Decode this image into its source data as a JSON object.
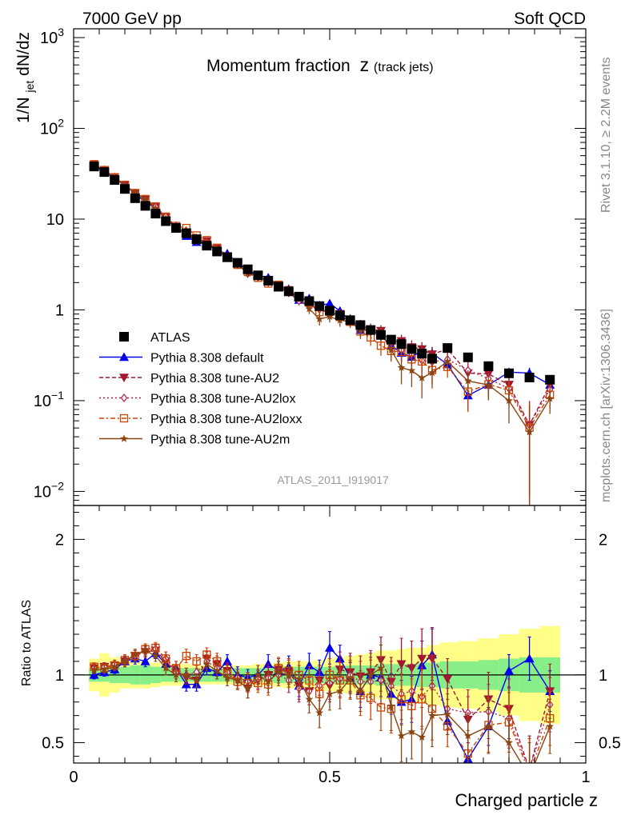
{
  "header": {
    "left": "7000 GeV pp",
    "right": "Soft QCD"
  },
  "side_labels": {
    "rivet": "Rivet 3.1.10, ≥ 2.2M events",
    "mcplots": "mcplots.cern.ch [arXiv:1306.3436]"
  },
  "chart_data": {
    "type": "line",
    "title": "Momentum fraction",
    "title_var": "z",
    "title_sub": "(track jets)",
    "analysis_label": "ATLAS_2011_I919017",
    "xlabel": "Charged particle z",
    "ylabel_main": "1/N",
    "ylabel_sub": "jet",
    "ylabel_tail": " dN/dz",
    "ratio_ylabel": "Ratio to ATLAS",
    "xlim": [
      0,
      1
    ],
    "ylim_main": [
      0.007,
      1250
    ],
    "ylim_ratio": [
      0.35,
      2.25
    ],
    "yscale_main": "log",
    "x_ticks": [
      "0",
      "0.5",
      "1"
    ],
    "ratio_ticks": [
      "0.5",
      "1",
      "2"
    ],
    "main_ticks": [
      {
        "value": 0.01,
        "base": "10",
        "exp": "−2"
      },
      {
        "value": 0.1,
        "base": "10",
        "exp": "−1"
      },
      {
        "value": 1,
        "base": "1",
        "exp": ""
      },
      {
        "value": 10,
        "base": "10",
        "exp": ""
      },
      {
        "value": 100,
        "base": "10",
        "exp": "2"
      },
      {
        "value": 1000,
        "base": "10",
        "exp": "3"
      }
    ],
    "legend_placement": "lower-left",
    "x": [
      0.04,
      0.06,
      0.08,
      0.1,
      0.12,
      0.14,
      0.16,
      0.18,
      0.2,
      0.22,
      0.24,
      0.26,
      0.28,
      0.3,
      0.32,
      0.34,
      0.36,
      0.38,
      0.4,
      0.42,
      0.44,
      0.46,
      0.48,
      0.5,
      0.52,
      0.54,
      0.56,
      0.58,
      0.6,
      0.62,
      0.64,
      0.66,
      0.68,
      0.7,
      0.73,
      0.77,
      0.81,
      0.85,
      0.89,
      0.93
    ],
    "reference": {
      "name": "ATLAS",
      "values": [
        38,
        33,
        27,
        21.5,
        17,
        14,
        11.5,
        9.5,
        8,
        7,
        6,
        5.1,
        4.4,
        3.8,
        3.3,
        2.8,
        2.4,
        2.1,
        1.8,
        1.6,
        1.4,
        1.25,
        1.1,
        0.98,
        0.87,
        0.77,
        0.68,
        0.6,
        0.53,
        0.47,
        0.42,
        0.37,
        0.33,
        0.29,
        0.38,
        0.3,
        0.24,
        0.2,
        0.18,
        0.17
      ],
      "band_inner": [
        0.05,
        0.05,
        0.06,
        0.06,
        0.07,
        0.07,
        0.06,
        0.05,
        0.05,
        0.05,
        0.05,
        0.05,
        0.05,
        0.05,
        0.05,
        0.05,
        0.05,
        0.05,
        0.06,
        0.06,
        0.06,
        0.06,
        0.06,
        0.06,
        0.07,
        0.07,
        0.07,
        0.07,
        0.08,
        0.08,
        0.08,
        0.08,
        0.09,
        0.09,
        0.1,
        0.1,
        0.11,
        0.12,
        0.13,
        0.13
      ],
      "band_outer": [
        0.12,
        0.16,
        0.13,
        0.1,
        0.1,
        0.1,
        0.09,
        0.08,
        0.08,
        0.08,
        0.07,
        0.07,
        0.07,
        0.07,
        0.07,
        0.07,
        0.08,
        0.08,
        0.09,
        0.1,
        0.1,
        0.1,
        0.11,
        0.12,
        0.13,
        0.14,
        0.15,
        0.16,
        0.18,
        0.18,
        0.19,
        0.2,
        0.2,
        0.22,
        0.24,
        0.25,
        0.27,
        0.3,
        0.34,
        0.36
      ]
    },
    "series": [
      {
        "name": "Pythia 8.308 default",
        "color": "#0000ee",
        "dash": "",
        "marker": "triangle-up",
        "ratio": [
          1.0,
          1.02,
          1.04,
          1.1,
          1.12,
          1.1,
          1.16,
          1.08,
          1.05,
          0.93,
          0.93,
          1.05,
          1.02,
          1.1,
          1.0,
          0.98,
          1.0,
          1.08,
          1.03,
          1.06,
          0.92,
          1.07,
          1.02,
          1.2,
          1.12,
          0.98,
          0.88,
          1.0,
          0.98,
          0.86,
          0.8,
          0.82,
          1.07,
          1.15,
          0.66,
          0.38,
          0.62,
          1.03,
          1.12,
          0.88
        ],
        "err": [
          0.03,
          0.03,
          0.03,
          0.03,
          0.04,
          0.04,
          0.04,
          0.04,
          0.05,
          0.05,
          0.05,
          0.05,
          0.05,
          0.05,
          0.06,
          0.06,
          0.07,
          0.07,
          0.07,
          0.08,
          0.08,
          0.09,
          0.09,
          0.12,
          0.1,
          0.11,
          0.12,
          0.13,
          0.14,
          0.15,
          0.16,
          0.17,
          0.18,
          0.19,
          0.1,
          0.12,
          0.14,
          0.12,
          0.16,
          0.15
        ]
      },
      {
        "name": "Pythia 8.308 tune-AU2",
        "color": "#a01830",
        "dash": "5,3",
        "marker": "triangle-down",
        "ratio": [
          1.05,
          1.06,
          1.07,
          1.1,
          1.14,
          1.17,
          1.18,
          1.1,
          1.02,
          0.98,
          0.96,
          1.12,
          1.08,
          1.03,
          0.96,
          0.9,
          0.96,
          1.0,
          1.04,
          1.02,
          0.92,
          0.88,
          0.96,
          0.92,
          1.04,
          1.02,
          0.99,
          1.02,
          1.11,
          0.95,
          1.08,
          1.05,
          1.12,
          1.12,
          0.97,
          0.67,
          0.82,
          0.75,
          0.3,
          0.88
        ],
        "err": [
          0.03,
          0.03,
          0.03,
          0.04,
          0.04,
          0.04,
          0.04,
          0.05,
          0.05,
          0.05,
          0.05,
          0.05,
          0.06,
          0.06,
          0.06,
          0.07,
          0.07,
          0.08,
          0.08,
          0.09,
          0.1,
          0.1,
          0.11,
          0.12,
          0.13,
          0.14,
          0.15,
          0.16,
          0.17,
          0.18,
          0.19,
          0.2,
          0.22,
          0.23,
          0.15,
          0.17,
          0.2,
          0.22,
          0.25,
          0.2
        ]
      },
      {
        "name": "Pythia 8.308 tune-AU2lox",
        "color": "#b02050",
        "dash": "2,3",
        "marker": "diamond",
        "ratio": [
          1.05,
          1.06,
          1.08,
          1.1,
          1.14,
          1.18,
          1.19,
          1.12,
          1.02,
          1.0,
          1.02,
          1.1,
          1.05,
          1.02,
          0.98,
          0.95,
          0.97,
          0.98,
          1.0,
          0.96,
          0.9,
          0.88,
          0.92,
          0.94,
          0.97,
          1.0,
          0.95,
          0.95,
          0.96,
          0.92,
          0.86,
          0.88,
          0.84,
          0.92,
          0.75,
          0.72,
          0.73,
          0.68,
          0.3,
          0.78
        ],
        "err": [
          0.03,
          0.03,
          0.03,
          0.04,
          0.04,
          0.04,
          0.04,
          0.05,
          0.05,
          0.05,
          0.05,
          0.05,
          0.06,
          0.06,
          0.06,
          0.07,
          0.07,
          0.08,
          0.08,
          0.09,
          0.1,
          0.1,
          0.11,
          0.12,
          0.13,
          0.14,
          0.15,
          0.16,
          0.17,
          0.18,
          0.19,
          0.2,
          0.22,
          0.23,
          0.15,
          0.17,
          0.2,
          0.22,
          0.25,
          0.2
        ]
      },
      {
        "name": "Pythia 8.308 tune-AU2loxx",
        "color": "#cc4400",
        "dash": "6,3,2,3",
        "marker": "square-open",
        "ratio": [
          1.06,
          1.05,
          1.07,
          1.11,
          1.14,
          1.19,
          1.2,
          1.12,
          1.05,
          1.14,
          1.1,
          1.15,
          1.1,
          1.01,
          0.95,
          0.94,
          0.94,
          0.93,
          1.05,
          1.03,
          1.0,
          0.96,
          0.86,
          1.0,
          0.96,
          0.96,
          0.85,
          0.83,
          0.76,
          0.75,
          0.82,
          0.77,
          0.82,
          0.75,
          0.62,
          0.42,
          0.63,
          0.65,
          0.28,
          0.68
        ],
        "err": [
          0.03,
          0.03,
          0.03,
          0.04,
          0.04,
          0.04,
          0.04,
          0.05,
          0.05,
          0.05,
          0.05,
          0.05,
          0.06,
          0.06,
          0.06,
          0.07,
          0.07,
          0.08,
          0.08,
          0.09,
          0.1,
          0.1,
          0.11,
          0.12,
          0.13,
          0.14,
          0.15,
          0.16,
          0.17,
          0.18,
          0.19,
          0.2,
          0.22,
          0.23,
          0.15,
          0.17,
          0.2,
          0.22,
          0.25,
          0.2
        ]
      },
      {
        "name": "Pythia 8.308 tune-AU2m",
        "color": "#8b4513",
        "dash": "",
        "marker": "star",
        "ratio": [
          1.04,
          1.04,
          1.06,
          1.1,
          1.15,
          1.18,
          1.14,
          1.05,
          1.0,
          1.0,
          0.96,
          1.08,
          1.03,
          0.98,
          0.96,
          0.9,
          1.0,
          0.95,
          1.02,
          1.0,
          0.97,
          0.82,
          0.72,
          0.86,
          0.88,
          0.97,
          0.88,
          1.0,
          1.05,
          0.77,
          0.55,
          0.58,
          0.54,
          0.7,
          0.71,
          0.55,
          0.62,
          0.5,
          0.25,
          0.62
        ],
        "err": [
          0.03,
          0.03,
          0.03,
          0.04,
          0.04,
          0.04,
          0.04,
          0.05,
          0.05,
          0.05,
          0.05,
          0.05,
          0.06,
          0.06,
          0.06,
          0.07,
          0.07,
          0.08,
          0.08,
          0.09,
          0.1,
          0.1,
          0.11,
          0.12,
          0.13,
          0.14,
          0.15,
          0.16,
          0.17,
          0.18,
          0.19,
          0.2,
          0.22,
          0.23,
          0.15,
          0.17,
          0.2,
          0.22,
          0.25,
          0.2
        ]
      }
    ]
  }
}
